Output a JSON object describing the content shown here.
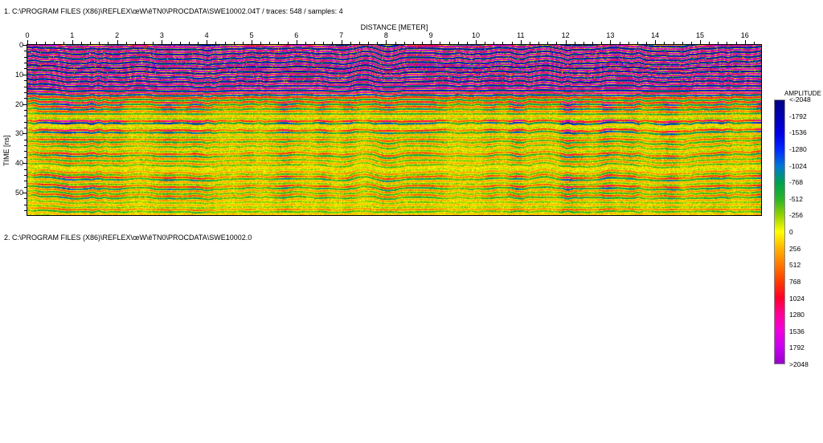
{
  "window": {
    "section1_label": "1. C:\\PROGRAM FILES (X86)\\REFLEX\\œW\\êTN0\\PROCDATA\\SWE10002.04T / traces: 548 / samples: 4",
    "section2_label": "2. C:\\PROGRAM FILES (X86)\\REFLEX\\œW\\êTN0\\PROCDATA\\SWE10002.0"
  },
  "radargram": {
    "x_axis": {
      "title": "DISTANCE [METER]",
      "ticks": [
        "0",
        "1",
        "2",
        "3",
        "4",
        "5",
        "6",
        "7",
        "8",
        "9",
        "10",
        "11",
        "12",
        "13",
        "14",
        "15",
        "16"
      ]
    },
    "y_axis": {
      "title": "TIME [ns]",
      "ticks": [
        "0",
        "10",
        "20",
        "30",
        "40",
        "50"
      ]
    }
  },
  "colorbar": {
    "title": "AMPLITUDE",
    "labels": [
      "<-2048",
      "-1792",
      "-1536",
      "-1280",
      "-1024",
      "-768",
      "-512",
      "-256",
      "0",
      "256",
      "512",
      "768",
      "1024",
      "1280",
      "1536",
      "1792",
      ">2048"
    ],
    "colors": [
      "#000082",
      "#0000b4",
      "#0000e6",
      "#0028ff",
      "#0078d2",
      "#00a050",
      "#28b428",
      "#96d200",
      "#ffff00",
      "#ffb400",
      "#ff7800",
      "#ff3c00",
      "#ff0028",
      "#ff0096",
      "#f000dc",
      "#c800f0",
      "#9600c8"
    ]
  }
}
